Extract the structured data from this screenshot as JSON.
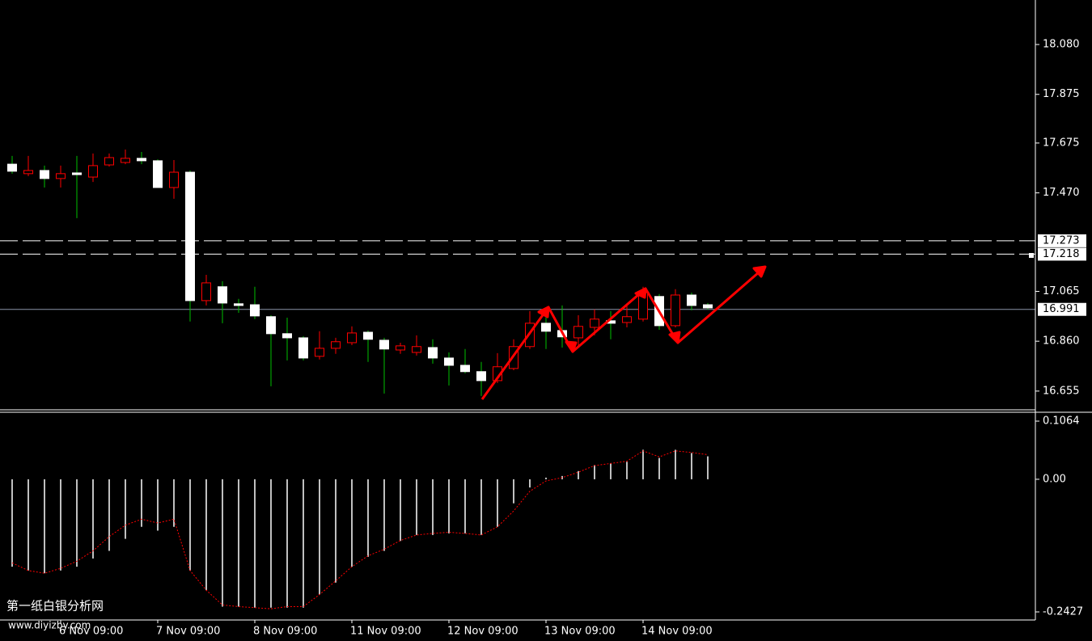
{
  "chart_data": [
    {
      "type": "candlestick",
      "categories": [
        null,
        null,
        null,
        "6 Nov 09:00",
        null,
        null,
        null,
        null,
        null,
        "7 Nov 09:00",
        null,
        null,
        null,
        null,
        null,
        "8 Nov 09:00",
        null,
        null,
        null,
        null,
        null,
        "11 Nov 09:00",
        null,
        null,
        null,
        null,
        null,
        "12 Nov 09:00",
        null,
        null,
        null,
        null,
        null,
        "13 Nov 09:00",
        null,
        null,
        null,
        null,
        null,
        "14 Nov 09:00",
        null,
        null,
        null,
        null
      ],
      "open": [
        17.588,
        17.549,
        17.562,
        17.529,
        17.552,
        17.535,
        17.585,
        17.595,
        17.612,
        17.602,
        17.492,
        17.555,
        17.027,
        17.084,
        17.014,
        17.01,
        16.961,
        16.891,
        16.874,
        16.798,
        16.831,
        16.854,
        16.897,
        16.864,
        16.824,
        16.814,
        16.834,
        16.791,
        16.761,
        16.735,
        16.698,
        16.748,
        16.838,
        16.934,
        16.904,
        16.874,
        16.917,
        16.944,
        16.937,
        16.951,
        17.044,
        16.924,
        17.05,
        17.01
      ],
      "high": [
        17.622,
        17.622,
        17.582,
        17.582,
        17.622,
        17.632,
        17.632,
        17.648,
        17.638,
        17.608,
        17.605,
        17.562,
        17.133,
        17.107,
        17.034,
        17.084,
        16.967,
        16.957,
        16.881,
        16.901,
        16.874,
        16.921,
        16.904,
        16.874,
        16.854,
        16.884,
        16.868,
        16.814,
        16.828,
        16.775,
        16.811,
        16.868,
        16.984,
        16.984,
        17.007,
        16.967,
        16.991,
        16.984,
        17.007,
        17.084,
        17.054,
        17.074,
        17.06,
        17.017
      ],
      "low": [
        17.549,
        17.539,
        17.492,
        17.492,
        17.366,
        17.515,
        17.578,
        17.588,
        17.588,
        17.492,
        17.446,
        16.941,
        17.007,
        16.934,
        16.977,
        16.951,
        16.675,
        16.781,
        16.781,
        16.785,
        16.808,
        16.844,
        16.775,
        16.645,
        16.808,
        16.801,
        16.768,
        16.678,
        16.728,
        16.635,
        16.688,
        16.741,
        16.828,
        16.828,
        16.834,
        16.841,
        16.884,
        16.868,
        16.917,
        16.941,
        16.907,
        16.917,
        16.987,
        16.991
      ],
      "close": [
        17.559,
        17.562,
        17.529,
        17.549,
        17.545,
        17.582,
        17.615,
        17.612,
        17.602,
        17.492,
        17.555,
        17.027,
        17.1,
        17.017,
        17.007,
        16.964,
        16.891,
        16.874,
        16.791,
        16.831,
        16.858,
        16.894,
        16.868,
        16.828,
        16.841,
        16.838,
        16.791,
        16.761,
        16.735,
        16.698,
        16.755,
        16.838,
        16.934,
        16.901,
        16.878,
        16.921,
        16.951,
        16.934,
        16.961,
        17.06,
        16.924,
        17.05,
        17.007,
        16.997
      ],
      "up_color": "#ff0000",
      "down_color": "#ffffff",
      "down_wick_color": "#00c000",
      "ylim": [
        16.578,
        18.263
      ],
      "yticks": [
        {
          "value": 18.08,
          "label": "18.080"
        },
        17.875,
        17.675,
        {
          "value": 17.47,
          "label": "17.470"
        },
        17.065,
        {
          "value": 16.86,
          "label": "16.860"
        },
        16.655
      ],
      "hlines": [
        17.273,
        17.218
      ],
      "hline_color": "#ffffff",
      "bid": 16.991,
      "bid_color": "#8a94a8"
    },
    {
      "type": "macd",
      "histogram": [
        -0.16,
        -0.167,
        -0.172,
        -0.167,
        -0.16,
        -0.145,
        -0.131,
        -0.109,
        -0.087,
        -0.094,
        -0.087,
        -0.167,
        -0.203,
        -0.233,
        -0.233,
        -0.235,
        -0.235,
        -0.235,
        -0.235,
        -0.211,
        -0.189,
        -0.16,
        -0.142,
        -0.131,
        -0.113,
        -0.102,
        -0.102,
        -0.099,
        -0.099,
        -0.102,
        -0.087,
        -0.044,
        -0.015,
        0.003,
        0.006,
        0.015,
        0.026,
        0.029,
        0.032,
        0.054,
        0.039,
        0.054,
        0.048,
        0.042
      ],
      "signal": [
        -0.153,
        -0.167,
        -0.172,
        -0.163,
        -0.15,
        -0.131,
        -0.105,
        -0.084,
        -0.073,
        -0.08,
        -0.073,
        -0.167,
        -0.203,
        -0.23,
        -0.233,
        -0.235,
        -0.237,
        -0.233,
        -0.233,
        -0.211,
        -0.186,
        -0.16,
        -0.14,
        -0.128,
        -0.112,
        -0.102,
        -0.099,
        -0.097,
        -0.099,
        -0.102,
        -0.087,
        -0.058,
        -0.022,
        -0.003,
        0.003,
        0.013,
        0.025,
        0.029,
        0.033,
        0.052,
        0.041,
        0.052,
        0.049,
        0.045
      ],
      "histogram_color": "#c0c0c0",
      "signal_color": "#ff0000",
      "ylim": [
        -0.2575,
        0.1212
      ],
      "yticks": [
        0.1064,
        {
          "value": 0,
          "label": "0.00"
        },
        -0.2427
      ]
    }
  ],
  "watermark": [
    "第一纸白银分析网",
    "www.diyizby.com"
  ]
}
